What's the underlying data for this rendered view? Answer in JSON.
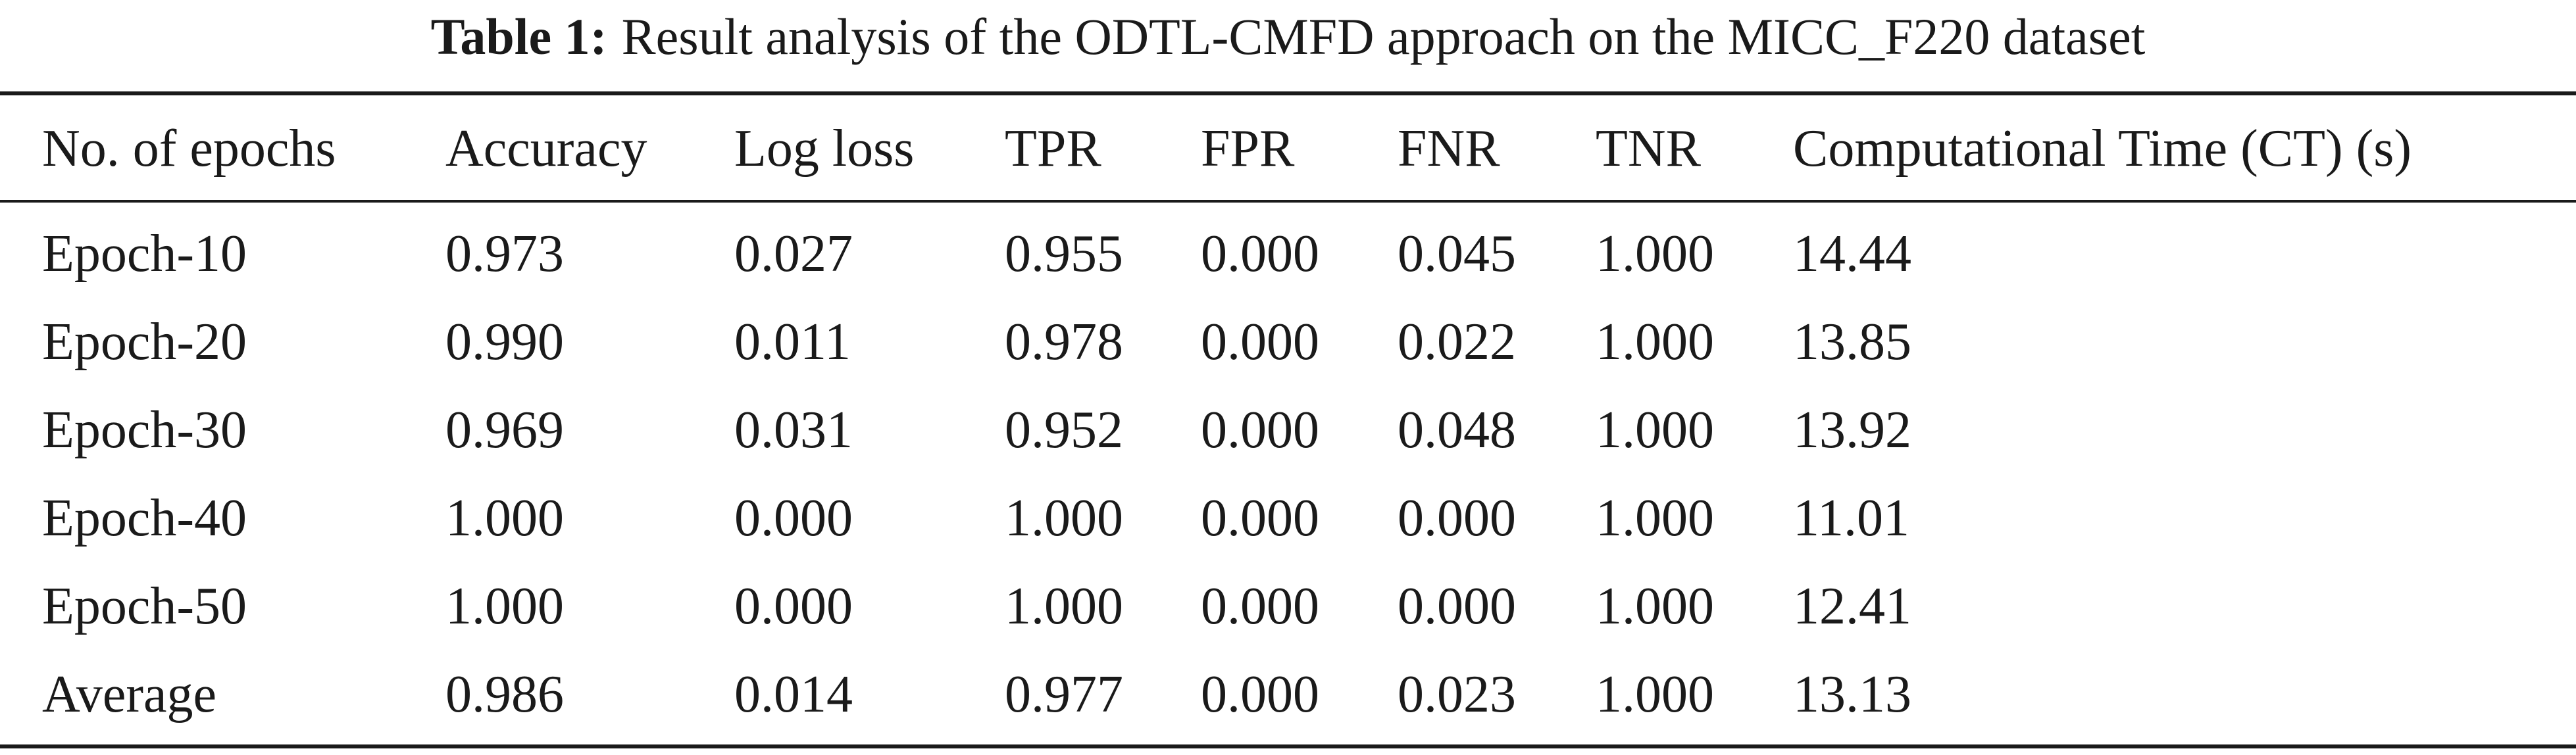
{
  "caption": {
    "label": "Table 1:",
    "text": "Result analysis of the ODTL-CMFD approach on the MICC_F220 dataset"
  },
  "table": {
    "headers": [
      "No. of epochs",
      "Accuracy",
      "Log loss",
      "TPR",
      "FPR",
      "FNR",
      "TNR",
      "Computational Time (CT) (s)"
    ],
    "rows": [
      [
        "Epoch-10",
        "0.973",
        "0.027",
        "0.955",
        "0.000",
        "0.045",
        "1.000",
        "14.44"
      ],
      [
        "Epoch-20",
        "0.990",
        "0.011",
        "0.978",
        "0.000",
        "0.022",
        "1.000",
        "13.85"
      ],
      [
        "Epoch-30",
        "0.969",
        "0.031",
        "0.952",
        "0.000",
        "0.048",
        "1.000",
        "13.92"
      ],
      [
        "Epoch-40",
        "1.000",
        "0.000",
        "1.000",
        "0.000",
        "0.000",
        "1.000",
        "11.01"
      ],
      [
        "Epoch-50",
        "1.000",
        "0.000",
        "1.000",
        "0.000",
        "0.000",
        "1.000",
        "12.41"
      ],
      [
        "Average",
        "0.986",
        "0.014",
        "0.977",
        "0.000",
        "0.023",
        "1.000",
        "13.13"
      ]
    ]
  }
}
